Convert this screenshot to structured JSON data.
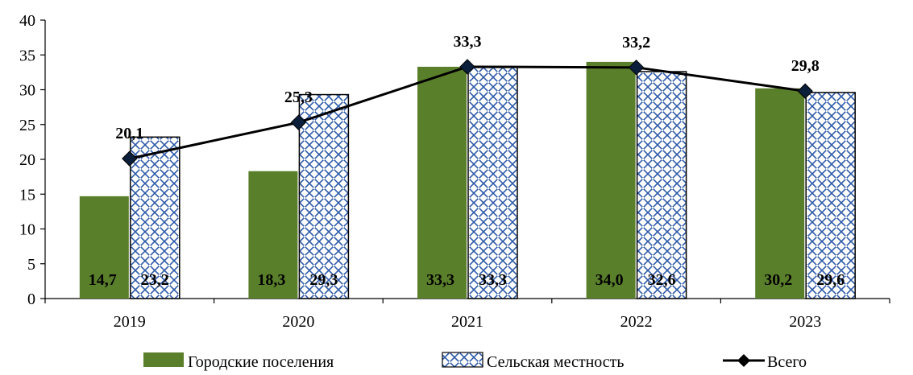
{
  "chart_data": {
    "type": "bar",
    "categories": [
      "2019",
      "2020",
      "2021",
      "2022",
      "2023"
    ],
    "series": [
      {
        "name": "Городские поселения",
        "kind": "bar",
        "color": "#5a7f2b",
        "values": [
          14.7,
          18.3,
          33.3,
          34.0,
          30.2
        ],
        "labels": [
          "14,7",
          "18,3",
          "33,3",
          "34,0",
          "30,2"
        ]
      },
      {
        "name": "Сельская местность",
        "kind": "bar",
        "pattern": "blue-crosshatch",
        "color": "#2e5aa8",
        "values": [
          23.2,
          29.3,
          33.3,
          32.6,
          29.6
        ],
        "labels": [
          "23,2",
          "29,3",
          "33,3",
          "32,6",
          "29,6"
        ]
      },
      {
        "name": "Всего",
        "kind": "line",
        "marker": "diamond",
        "color": "#000000",
        "values": [
          20.1,
          25.3,
          33.3,
          33.2,
          29.8
        ],
        "labels": [
          "20,1",
          "25,3",
          "33,3",
          "33,2",
          "29,8"
        ]
      }
    ],
    "y_ticks": [
      "0",
      "5",
      "10",
      "15",
      "20",
      "25",
      "30",
      "35",
      "40"
    ],
    "ylim": [
      0,
      40
    ],
    "grid": false,
    "legend_position": "bottom"
  }
}
